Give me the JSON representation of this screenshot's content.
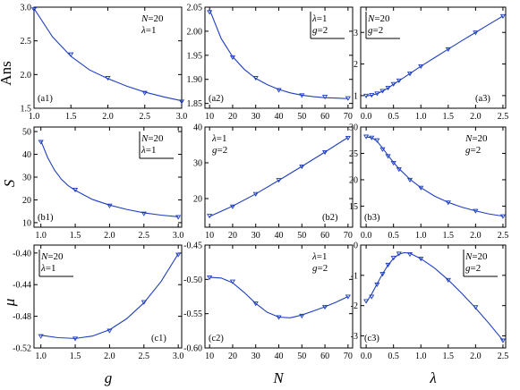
{
  "row_labels": [
    "Ans",
    "S",
    "μ"
  ],
  "col_labels": [
    "g",
    "N",
    "λ"
  ],
  "colors": {
    "curve": "#1f3fbf",
    "marker": "#1f3fbf",
    "axis": "#000000",
    "background": "#ffffff"
  },
  "chart_data": [
    {
      "id": "a1",
      "type": "scatter",
      "panel_label": "(a1)",
      "legend": [
        "N=20",
        "λ=1"
      ],
      "legend_position": "top-right",
      "legend_boxed": false,
      "xlim": [
        1.0,
        3.0
      ],
      "ylim": [
        1.5,
        3.0
      ],
      "xticks": [
        "1.0",
        "1.5",
        "2.0",
        "2.5",
        "3.0"
      ],
      "yticks": [
        "1.5",
        "2.0",
        "2.5",
        "3.0"
      ],
      "xtick_values": [
        1.0,
        1.5,
        2.0,
        2.5,
        3.0
      ],
      "ytick_values": [
        1.5,
        2.0,
        2.5,
        3.0
      ],
      "x": [
        1.0,
        1.5,
        2.0,
        2.5,
        3.0
      ],
      "y": [
        2.97,
        2.3,
        1.95,
        1.73,
        1.6
      ],
      "curve_x": [
        1.0,
        1.25,
        1.5,
        1.75,
        2.0,
        2.25,
        2.5,
        2.75,
        3.0
      ],
      "curve_y": [
        2.98,
        2.56,
        2.27,
        2.07,
        1.94,
        1.83,
        1.74,
        1.67,
        1.61
      ]
    },
    {
      "id": "a2",
      "type": "scatter",
      "panel_label": "(a2)",
      "legend": [
        "λ=1",
        "g=2"
      ],
      "legend_position": "top-right",
      "legend_boxed": true,
      "xlim": [
        8,
        72
      ],
      "ylim": [
        1.84,
        2.05
      ],
      "xticks": [
        "10",
        "20",
        "30",
        "40",
        "50",
        "60",
        "70"
      ],
      "yticks": [
        "1.85",
        "1.90",
        "1.95",
        "2.00",
        "2.05"
      ],
      "xtick_values": [
        10,
        20,
        30,
        40,
        50,
        60,
        70
      ],
      "ytick_values": [
        1.85,
        1.9,
        1.95,
        2.0,
        2.05
      ],
      "x": [
        10,
        20,
        30,
        40,
        50,
        60,
        70
      ],
      "y": [
        2.04,
        1.946,
        1.903,
        1.878,
        1.867,
        1.864,
        1.861
      ],
      "curve_x": [
        10,
        15,
        20,
        25,
        30,
        35,
        40,
        45,
        50,
        55,
        60,
        65,
        70
      ],
      "curve_y": [
        2.045,
        1.985,
        1.947,
        1.921,
        1.902,
        1.889,
        1.879,
        1.872,
        1.867,
        1.864,
        1.862,
        1.861,
        1.86
      ]
    },
    {
      "id": "a3",
      "type": "scatter",
      "panel_label": "(a3)",
      "legend": [
        "N=20",
        "g=2"
      ],
      "legend_position": "top-left",
      "legend_boxed": true,
      "xlim": [
        -0.1,
        2.55
      ],
      "ylim": [
        0.6,
        3.8
      ],
      "xticks": [
        "0.0",
        "0.5",
        "1.0",
        "1.5",
        "2.0",
        "2.5"
      ],
      "yticks": [
        "1",
        "2",
        "3"
      ],
      "xtick_values": [
        0.0,
        0.5,
        1.0,
        1.5,
        2.0,
        2.5
      ],
      "ytick_values": [
        1,
        2,
        3
      ],
      "x": [
        0.0,
        0.1,
        0.2,
        0.3,
        0.4,
        0.5,
        0.6,
        0.8,
        1.0,
        1.5,
        2.0,
        2.5
      ],
      "y": [
        1.0,
        1.02,
        1.07,
        1.15,
        1.25,
        1.37,
        1.48,
        1.7,
        1.93,
        2.47,
        3.0,
        3.52
      ],
      "curve_x": [
        0.0,
        0.1,
        0.2,
        0.3,
        0.4,
        0.5,
        0.6,
        0.8,
        1.0,
        1.25,
        1.5,
        1.75,
        2.0,
        2.25,
        2.5
      ],
      "curve_y": [
        0.99,
        1.01,
        1.06,
        1.14,
        1.24,
        1.36,
        1.47,
        1.7,
        1.93,
        2.2,
        2.47,
        2.74,
        3.0,
        3.26,
        3.52
      ]
    },
    {
      "id": "b1",
      "type": "scatter",
      "panel_label": "(b1)",
      "legend": [
        "N=20",
        "λ=1"
      ],
      "legend_position": "top-right",
      "legend_boxed": true,
      "xlim": [
        0.9,
        3.05
      ],
      "ylim": [
        8,
        52
      ],
      "xticks": [
        "1.0",
        "1.5",
        "2.0",
        "2.5",
        "3.0"
      ],
      "yticks": [
        "10",
        "20",
        "30",
        "40",
        "50"
      ],
      "xtick_values": [
        1.0,
        1.5,
        2.0,
        2.5,
        3.0
      ],
      "ytick_values": [
        10,
        20,
        30,
        40,
        50
      ],
      "x": [
        1.0,
        1.5,
        2.0,
        2.5,
        3.0
      ],
      "y": [
        45.5,
        24.5,
        17.5,
        14.0,
        12.5
      ],
      "curve_x": [
        1.0,
        1.1,
        1.2,
        1.3,
        1.4,
        1.5,
        1.75,
        2.0,
        2.25,
        2.5,
        2.75,
        3.0
      ],
      "curve_y": [
        46.0,
        38.5,
        33.0,
        29.0,
        26.2,
        24.2,
        20.2,
        17.7,
        15.8,
        14.3,
        13.3,
        12.6
      ]
    },
    {
      "id": "b2",
      "type": "scatter",
      "panel_label": "(b2)",
      "legend": [
        "λ=1",
        "g=2"
      ],
      "legend_position": "top-left",
      "legend_boxed": false,
      "xlim": [
        8,
        72
      ],
      "ylim": [
        12,
        40
      ],
      "xticks": [
        "10",
        "20",
        "30",
        "40",
        "50",
        "60",
        "70"
      ],
      "yticks": [
        "20",
        "30",
        "40"
      ],
      "xtick_values": [
        10,
        20,
        30,
        40,
        50,
        60,
        70
      ],
      "ytick_values": [
        20,
        30,
        40
      ],
      "x": [
        10,
        20,
        30,
        40,
        50,
        60,
        70
      ],
      "y": [
        15.2,
        17.8,
        21.3,
        25.2,
        29.0,
        33.0,
        37.0
      ],
      "curve_x": [
        10,
        20,
        30,
        40,
        50,
        60,
        70
      ],
      "curve_y": [
        15.0,
        17.9,
        21.3,
        25.1,
        29.0,
        33.0,
        37.1
      ]
    },
    {
      "id": "b3",
      "type": "scatter",
      "panel_label": "(b3)",
      "legend": [
        "N=20",
        "g=2"
      ],
      "legend_position": "top-right",
      "legend_boxed": false,
      "xlim": [
        -0.1,
        2.55
      ],
      "ylim": [
        11,
        30
      ],
      "xticks": [
        "0.0",
        "0.5",
        "1.0",
        "1.5",
        "2.0",
        "2.5"
      ],
      "yticks": [
        "15",
        "20",
        "25",
        "30"
      ],
      "xtick_values": [
        0.0,
        0.5,
        1.0,
        1.5,
        2.0,
        2.5
      ],
      "ytick_values": [
        15,
        20,
        25,
        30
      ],
      "x": [
        0.0,
        0.1,
        0.2,
        0.3,
        0.4,
        0.5,
        0.6,
        0.8,
        1.0,
        1.5,
        2.0,
        2.5
      ],
      "y": [
        28.2,
        28.0,
        27.5,
        25.8,
        24.5,
        23.2,
        22.0,
        20.0,
        18.5,
        15.7,
        14.1,
        13.1
      ],
      "curve_x": [
        0.0,
        0.1,
        0.2,
        0.3,
        0.4,
        0.5,
        0.6,
        0.8,
        1.0,
        1.25,
        1.5,
        1.75,
        2.0,
        2.25,
        2.5
      ],
      "curve_y": [
        28.1,
        28.0,
        27.3,
        26.0,
        24.6,
        23.3,
        22.1,
        20.1,
        18.5,
        16.9,
        15.7,
        14.8,
        14.1,
        13.5,
        13.1
      ]
    },
    {
      "id": "c1",
      "type": "scatter",
      "panel_label": "(c1)",
      "legend": [
        "N=20",
        "λ=1"
      ],
      "legend_position": "top-left",
      "legend_boxed": true,
      "xlim": [
        0.9,
        3.05
      ],
      "ylim": [
        -0.52,
        -0.39
      ],
      "xticks": [
        "1.0",
        "1.5",
        "2.0",
        "2.5",
        "3.0"
      ],
      "yticks": [
        "-0.52",
        "-0.48",
        "-0.44",
        "-0.40"
      ],
      "xtick_values": [
        1.0,
        1.5,
        2.0,
        2.5,
        3.0
      ],
      "ytick_values": [
        -0.52,
        -0.48,
        -0.44,
        -0.4
      ],
      "x": [
        1.0,
        1.5,
        2.0,
        2.5,
        3.0
      ],
      "y": [
        -0.505,
        -0.508,
        -0.498,
        -0.462,
        -0.402
      ],
      "curve_x": [
        1.0,
        1.25,
        1.5,
        1.75,
        2.0,
        2.25,
        2.5,
        2.75,
        3.0
      ],
      "curve_y": [
        -0.504,
        -0.507,
        -0.508,
        -0.505,
        -0.497,
        -0.483,
        -0.463,
        -0.436,
        -0.401
      ]
    },
    {
      "id": "c2",
      "type": "scatter",
      "panel_label": "(c2)",
      "legend": [
        "λ=1",
        "g=2"
      ],
      "legend_position": "top-right",
      "legend_boxed": false,
      "xlim": [
        8,
        72
      ],
      "ylim": [
        -0.6,
        -0.45
      ],
      "xticks": [
        "10",
        "20",
        "30",
        "40",
        "50",
        "60",
        "70"
      ],
      "yticks": [
        "-0.60",
        "-0.55",
        "-0.50",
        "-0.45"
      ],
      "xtick_values": [
        10,
        20,
        30,
        40,
        50,
        60,
        70
      ],
      "ytick_values": [
        -0.6,
        -0.55,
        -0.5,
        -0.45
      ],
      "x": [
        10,
        20,
        30,
        40,
        50,
        60,
        70
      ],
      "y": [
        -0.497,
        -0.503,
        -0.535,
        -0.555,
        -0.553,
        -0.54,
        -0.525
      ],
      "curve_x": [
        10,
        15,
        20,
        25,
        30,
        35,
        40,
        45,
        50,
        55,
        60,
        65,
        70
      ],
      "curve_y": [
        -0.497,
        -0.498,
        -0.505,
        -0.519,
        -0.535,
        -0.548,
        -0.555,
        -0.556,
        -0.552,
        -0.546,
        -0.54,
        -0.533,
        -0.525
      ]
    },
    {
      "id": "c3",
      "type": "scatter",
      "panel_label": "(c3)",
      "legend": [
        "N=20",
        "g=2"
      ],
      "legend_position": "top-right",
      "legend_boxed": true,
      "xlim": [
        -0.1,
        2.55
      ],
      "ylim": [
        -3.4,
        0.0
      ],
      "xticks": [
        "0.0",
        "0.5",
        "1.0",
        "1.5",
        "2.0",
        "2.5"
      ],
      "yticks": [
        "-3",
        "-2",
        "-1",
        "0"
      ],
      "xtick_values": [
        0.0,
        0.5,
        1.0,
        1.5,
        2.0,
        2.5
      ],
      "ytick_values": [
        -3,
        -2,
        -1,
        0
      ],
      "x": [
        0.0,
        0.1,
        0.2,
        0.3,
        0.4,
        0.5,
        0.6,
        0.8,
        1.0,
        1.5,
        2.0,
        2.5
      ],
      "y": [
        -1.85,
        -1.7,
        -1.3,
        -0.95,
        -0.65,
        -0.42,
        -0.28,
        -0.3,
        -0.45,
        -1.15,
        -2.05,
        -3.15
      ],
      "curve_x": [
        0.0,
        0.1,
        0.2,
        0.3,
        0.4,
        0.5,
        0.6,
        0.7,
        0.8,
        1.0,
        1.25,
        1.5,
        1.75,
        2.0,
        2.25,
        2.5
      ],
      "curve_y": [
        -1.9,
        -1.62,
        -1.28,
        -0.95,
        -0.66,
        -0.44,
        -0.3,
        -0.25,
        -0.27,
        -0.45,
        -0.76,
        -1.15,
        -1.6,
        -2.08,
        -2.6,
        -3.15
      ]
    }
  ]
}
